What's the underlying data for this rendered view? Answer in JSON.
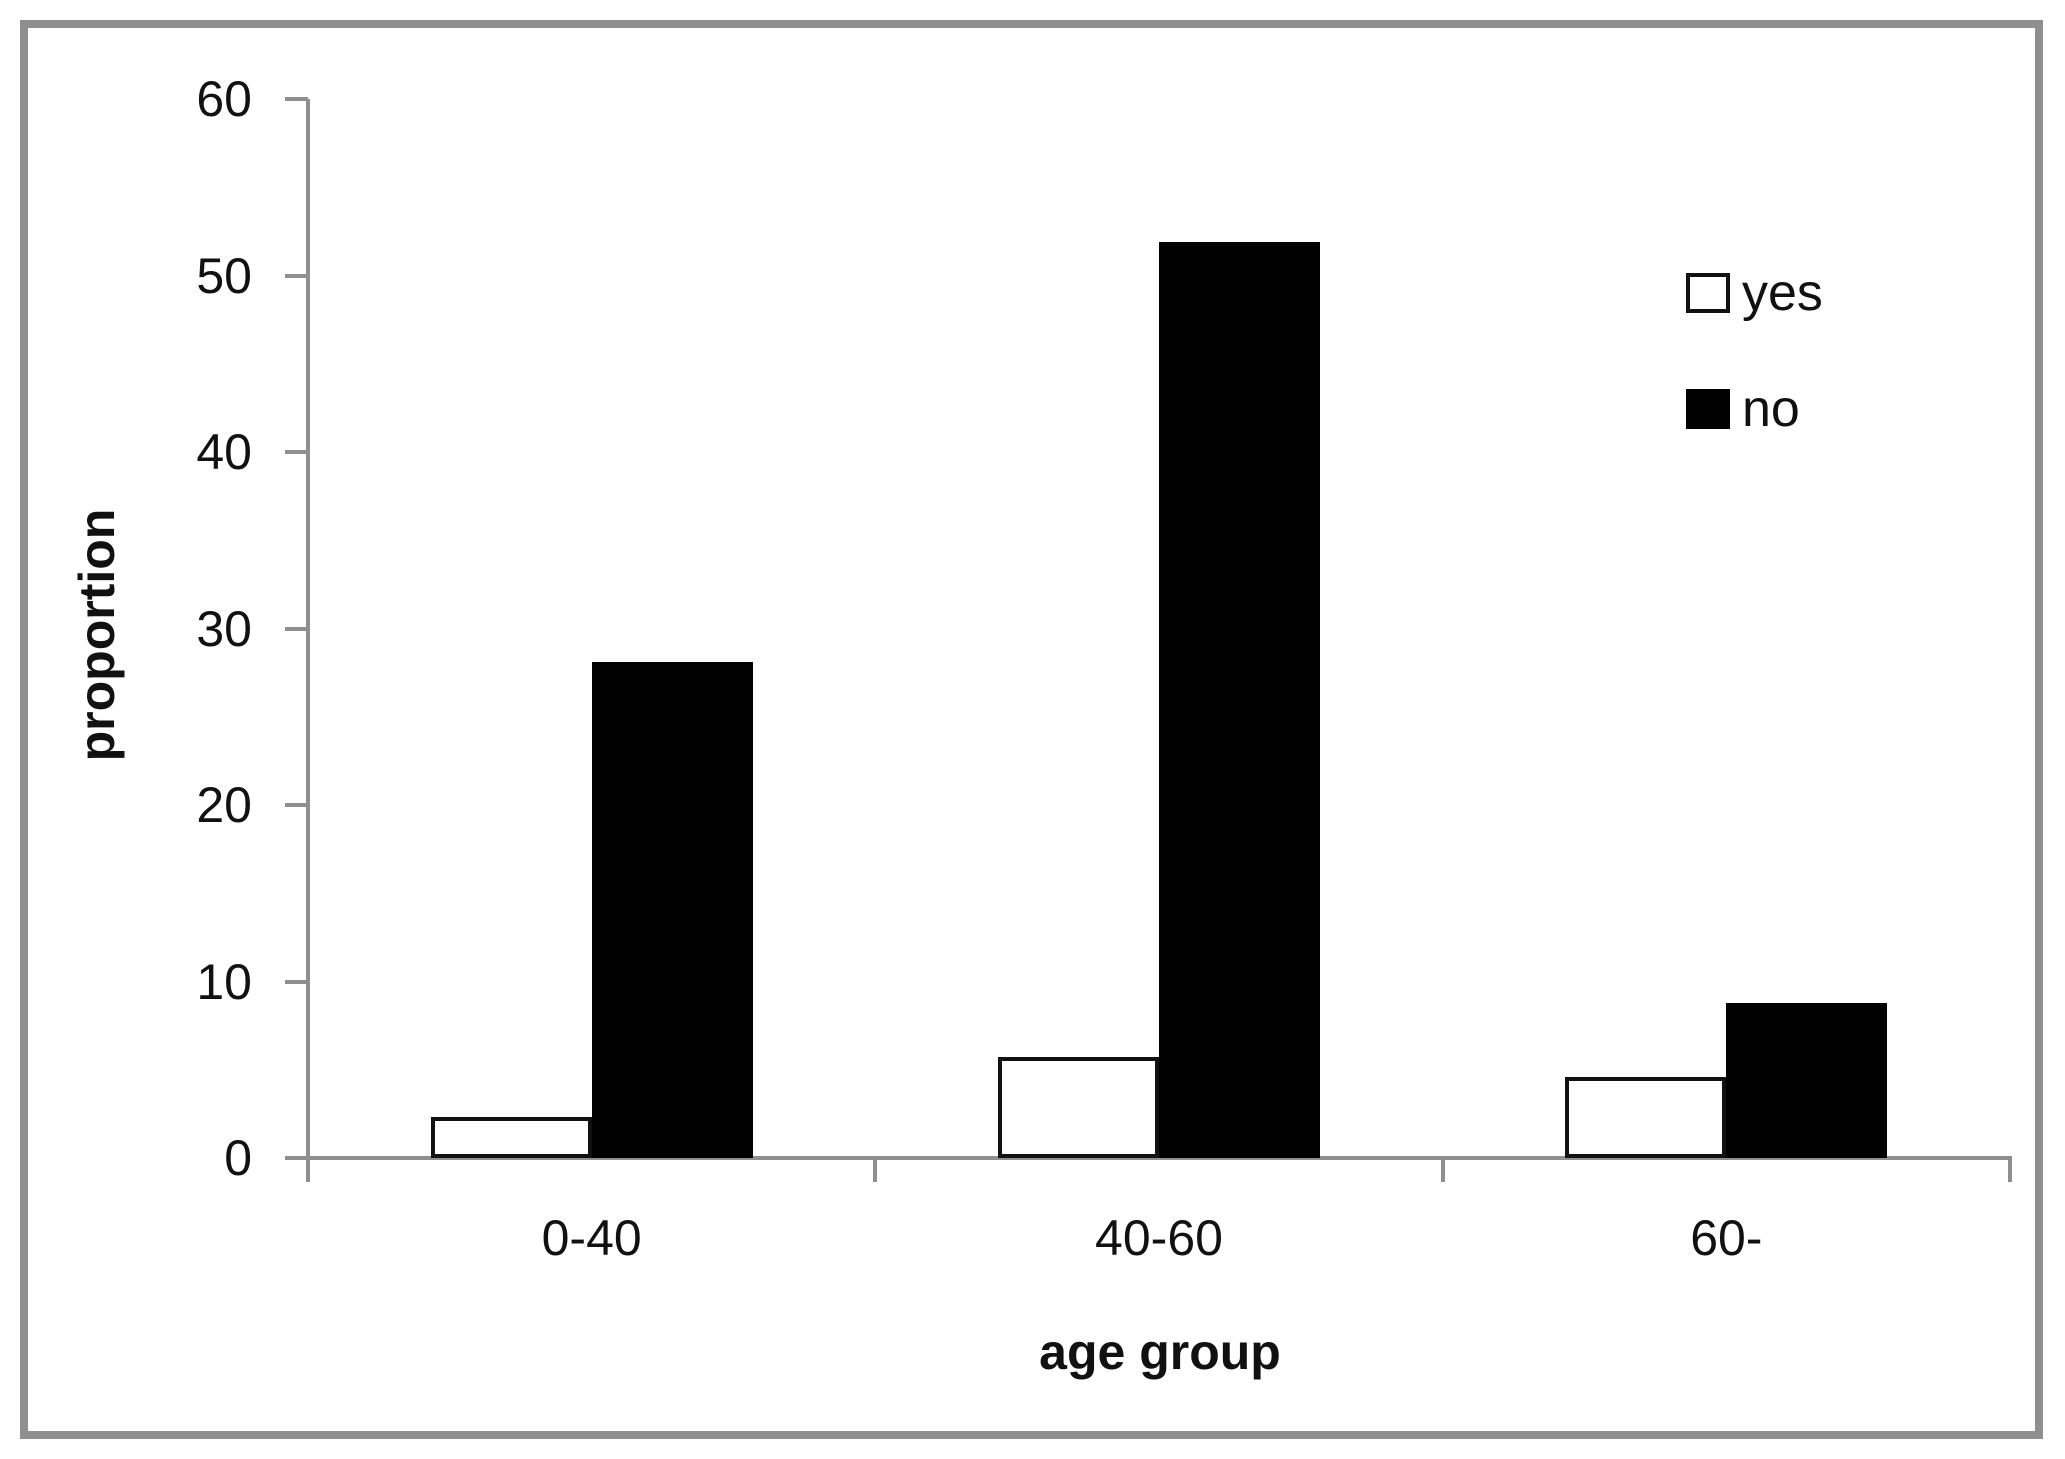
{
  "chart_data": {
    "type": "bar",
    "title": "",
    "xlabel": "age group",
    "ylabel": "proportion",
    "categories": [
      "0-40",
      "40-60",
      "60-"
    ],
    "series": [
      {
        "name": "yes",
        "fill": "#ffffff",
        "border": "#111111",
        "values": [
          2.3,
          5.7,
          4.6
        ]
      },
      {
        "name": "no",
        "fill": "#000000",
        "border": "#000000",
        "values": [
          28.1,
          51.9,
          8.8
        ]
      }
    ],
    "ylim": [
      0,
      60
    ],
    "y_ticks": [
      0,
      10,
      20,
      30,
      40,
      50,
      60
    ],
    "grid": "off",
    "legend_position": "upper right",
    "colors": {
      "axis": "#8f8f8f",
      "text": "#111111",
      "frame": "#8f8f8f",
      "background": "#ffffff"
    }
  }
}
